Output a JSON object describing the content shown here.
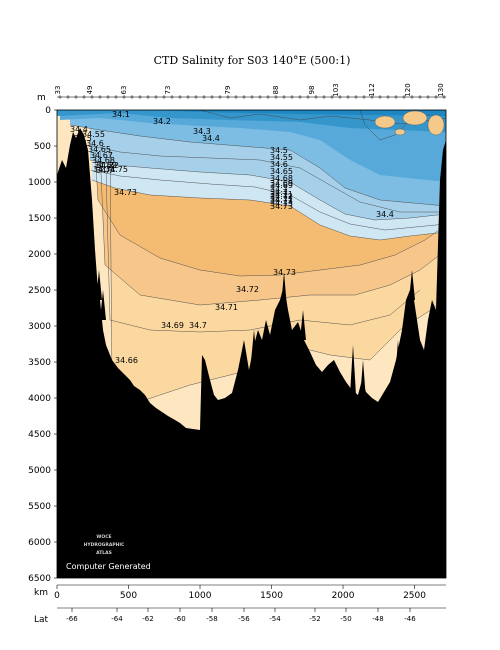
{
  "chart_data": {
    "type": "heatmap",
    "title": "CTD Salinity for S03 140°E (500:1)",
    "y_axis": {
      "label": "m",
      "ticks": [
        0,
        500,
        1000,
        1500,
        2000,
        2500,
        3000,
        3500,
        4000,
        4500,
        5000,
        5500,
        6000,
        6500
      ],
      "range": [
        0,
        6500
      ],
      "inverted": true
    },
    "x_axis": {
      "label": "km",
      "ticks": [
        0,
        500,
        1000,
        1500,
        2000,
        2500
      ],
      "range": [
        0,
        2720
      ]
    },
    "lat_axis": {
      "label": "Lat",
      "ticks": [
        "-66",
        "-64",
        "-62",
        "-60",
        "-58",
        "-56",
        "-54",
        "-52",
        "-50",
        "-48",
        "-46"
      ]
    },
    "stations": [
      "33",
      "49",
      "63",
      "73",
      "79",
      "88",
      "98",
      "103",
      "112",
      "120",
      "130"
    ],
    "contour_labels": [
      "34.1",
      "34.2",
      "34.3",
      "34.4",
      "34.4",
      "34.5",
      "34.55",
      "34.6",
      "34.65",
      "34.67",
      "34.68",
      "34.69",
      "34.7",
      "34.71",
      "34.72",
      "34.73",
      "34.75",
      "34.5",
      "34.55",
      "34.6",
      "34.65",
      "34.68",
      "34.69",
      "34.7",
      "34.71",
      "34.72",
      "34.73",
      "34.73",
      "34.72",
      "34.71",
      "34.69",
      "34.7",
      "34.66",
      "34.4",
      "34.73",
      "34.69",
      "34.7",
      "34.71",
      "34.72"
    ],
    "watermark": [
      "WOCE",
      "HYDROGRAPHIC",
      "ATLAS"
    ],
    "footer_text": "Computer Generated"
  }
}
